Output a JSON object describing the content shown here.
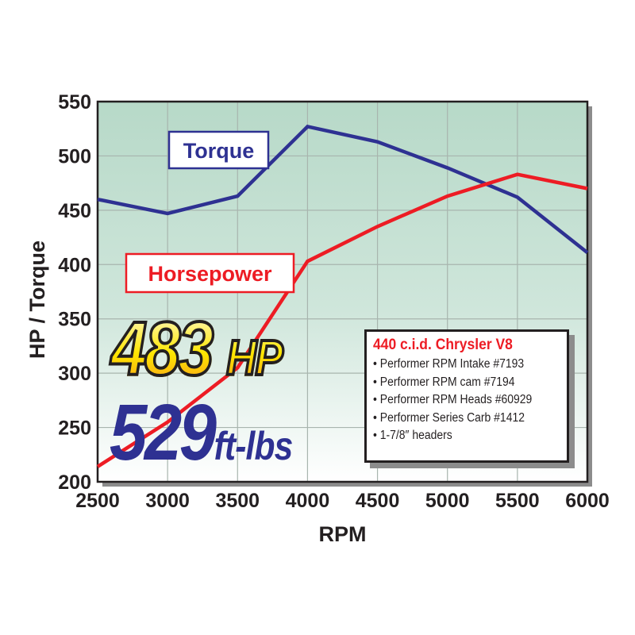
{
  "chart_data": {
    "type": "line",
    "x": [
      2500,
      3000,
      3500,
      4000,
      4500,
      5000,
      5500,
      6000
    ],
    "series": [
      {
        "name": "Torque",
        "color": "#2e3192",
        "values": [
          460,
          447,
          463,
          527,
          513,
          489,
          462,
          411
        ]
      },
      {
        "name": "Horsepower",
        "color": "#ed1c24",
        "values": [
          214,
          255,
          305,
          403,
          435,
          463,
          483,
          470
        ]
      }
    ],
    "xlabel": "RPM",
    "ylabel": "HP / Torque",
    "xlim": [
      2500,
      6000
    ],
    "ylim": [
      200,
      550
    ],
    "xticks": [
      "2500",
      "3000",
      "3500",
      "4000",
      "4500",
      "5000",
      "5500",
      "6000"
    ],
    "yticks": [
      "200",
      "250",
      "300",
      "350",
      "400",
      "450",
      "500",
      "550"
    ],
    "grid": true,
    "legend_placement": "inline-labels"
  },
  "callouts": {
    "hp_value": "483",
    "hp_unit": "HP",
    "torque_value": "529",
    "torque_unit": "ft-lbs"
  },
  "specs": {
    "title": "440 c.i.d. Chrysler V8",
    "items": [
      "Performer RPM Intake #7193",
      "Performer RPM cam #7194",
      "Performer RPM Heads #60929",
      "Performer Series Carb #1412",
      "1-7/8″ headers"
    ]
  }
}
